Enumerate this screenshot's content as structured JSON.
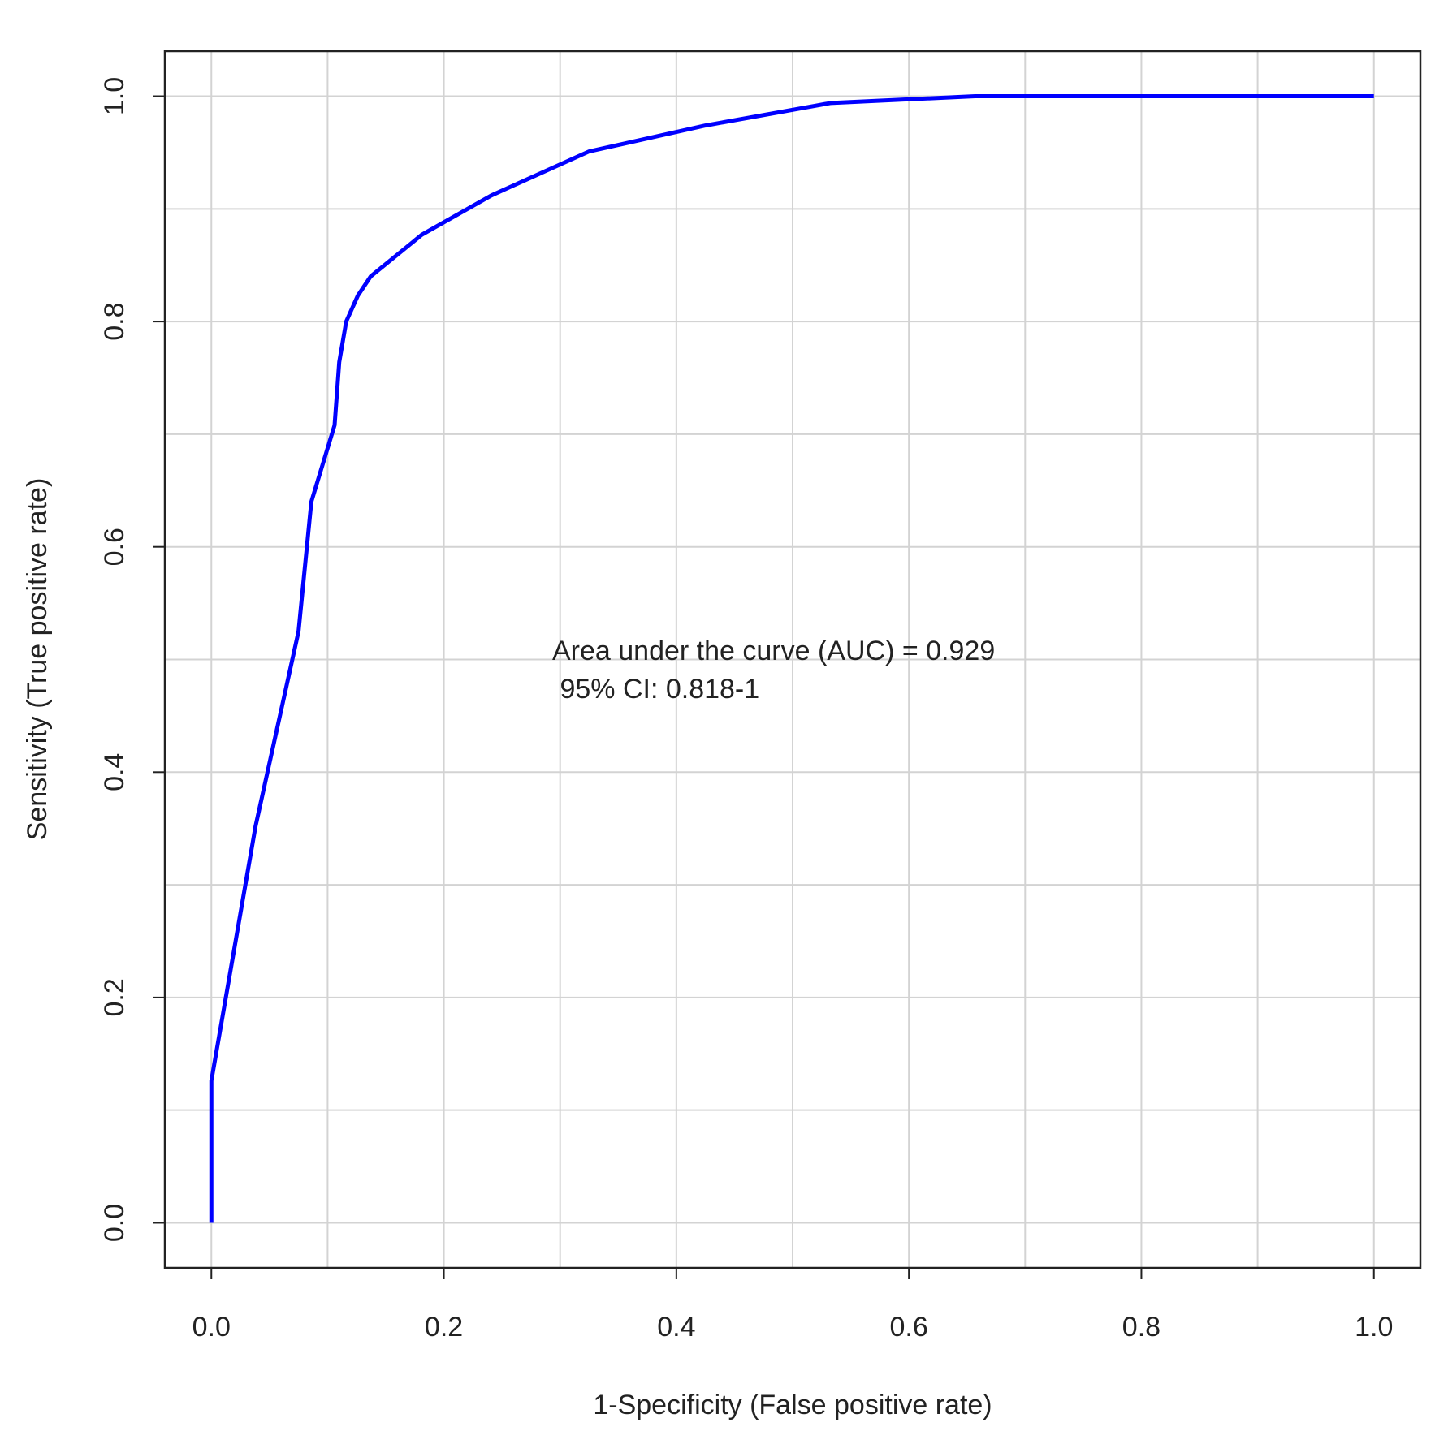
{
  "chart_data": {
    "type": "line",
    "x_label": "1-Specificity (False positive rate)",
    "y_label": "Sensitivity (True positive rate)",
    "annotations": [
      "Area under the curve (AUC) = 0.929",
      " 95% CI: 0.818-1"
    ],
    "x": [
      0,
      0,
      0.038,
      0.075,
      0.086,
      0.106,
      0.11,
      0.116,
      0.126,
      0.137,
      0.181,
      0.241,
      0.325,
      0.425,
      0.533,
      0.657,
      1
    ],
    "values": [
      0,
      0.126,
      0.352,
      0.525,
      0.64,
      0.708,
      0.764,
      0.8,
      0.823,
      0.84,
      0.877,
      0.912,
      0.951,
      0.974,
      0.994,
      1,
      1
    ],
    "color": "#0000ff",
    "xlim": [
      -0.04,
      1.04
    ],
    "ylim": [
      -0.04,
      1.04
    ],
    "xticks": [
      {
        "value": 0,
        "label": "0.0"
      },
      0.2,
      0.4,
      0.6,
      0.8,
      {
        "value": 1,
        "label": "1.0"
      }
    ],
    "yticks": [
      {
        "value": 0,
        "label": "0.0"
      },
      0.2,
      0.4,
      0.6,
      0.8,
      {
        "value": 1,
        "label": "1.0"
      }
    ],
    "grid": true,
    "minor_grid": [
      0.1,
      0.3,
      0.5,
      0.7,
      0.9
    ]
  }
}
